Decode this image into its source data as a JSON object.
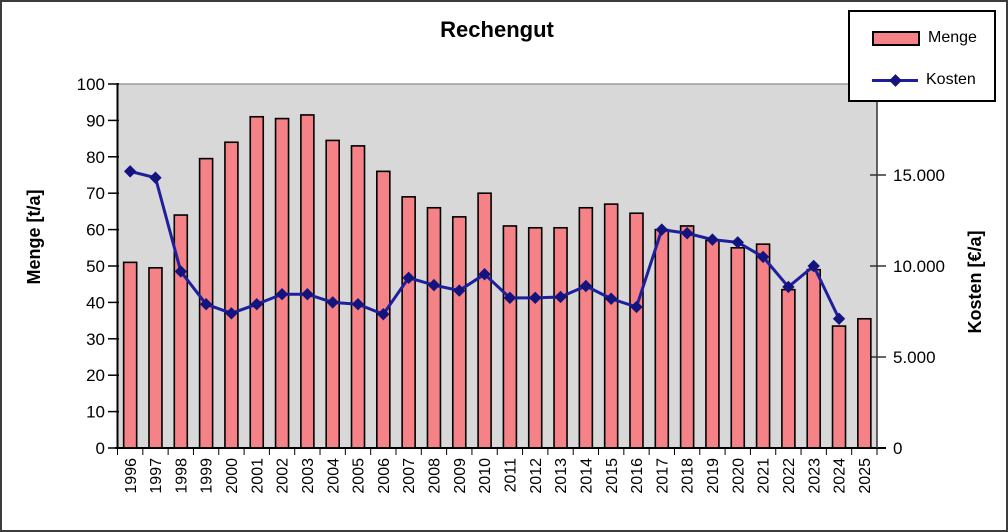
{
  "chart_title": "Rechengut",
  "legend": {
    "items": [
      {
        "label": "Menge",
        "swatch": "bar"
      },
      {
        "label": "Kosten",
        "swatch": "line-diamond"
      }
    ]
  },
  "colors": {
    "bar_fill": "#f48286",
    "bar_border": "#000000",
    "line": "#1f1f9c",
    "marker": "#14147e",
    "plot_background": "#d8d8d8",
    "plot_border": "#8a8a8a",
    "axis": "#000000",
    "right_axis": "#333333",
    "chart_background": "#ffffff",
    "legend_border": "#000000"
  },
  "chart_data": {
    "type": "combo-bar-line",
    "title": "Rechengut",
    "grid": false,
    "legend_position": "top-right",
    "plot_background": "#d8d8d8",
    "categories": [
      "1996",
      "1997",
      "1998",
      "1999",
      "2000",
      "2001",
      "2002",
      "2003",
      "2004",
      "2005",
      "2006",
      "2007",
      "2008",
      "2009",
      "2010",
      "2011",
      "2012",
      "2013",
      "2014",
      "2015",
      "2016",
      "2017",
      "2018",
      "2019",
      "2020",
      "2021",
      "2022",
      "2023",
      "2024",
      "2025"
    ],
    "series": [
      {
        "name": "Menge",
        "type": "bar",
        "axis": "left",
        "values": [
          51,
          49.5,
          64,
          79.5,
          84,
          91,
          90.5,
          91.5,
          84.5,
          83,
          76,
          69,
          66,
          63.5,
          70,
          61,
          60.5,
          60.5,
          66,
          67,
          64.5,
          60,
          61,
          57,
          55,
          56,
          43.5,
          49,
          33.5,
          35.5
        ]
      },
      {
        "name": "Kosten",
        "type": "line",
        "axis": "right",
        "values": [
          15200,
          14850,
          9700,
          7900,
          7400,
          7900,
          8450,
          8450,
          8000,
          7900,
          7350,
          9350,
          8950,
          8650,
          9550,
          8250,
          8250,
          8300,
          8900,
          8200,
          7750,
          12000,
          11800,
          11450,
          11300,
          10500,
          8850,
          10000,
          7100,
          null
        ]
      }
    ],
    "left_axis": {
      "title": "Menge [t/a]",
      "min": 0,
      "max": 100,
      "tick_step": 10,
      "tick_values": [
        0,
        10,
        20,
        30,
        40,
        50,
        60,
        70,
        80,
        90,
        100
      ],
      "tick_labels": [
        "0",
        "10",
        "20",
        "30",
        "40",
        "50",
        "60",
        "70",
        "80",
        "90",
        "100"
      ]
    },
    "right_axis": {
      "title": "Kosten [€/a]",
      "min": 0,
      "max": 20000,
      "tick_step": 5000,
      "tick_values": [
        0,
        5000,
        10000,
        15000
      ],
      "tick_labels": [
        "0",
        "5.000",
        "10.000",
        "15.000"
      ]
    }
  }
}
